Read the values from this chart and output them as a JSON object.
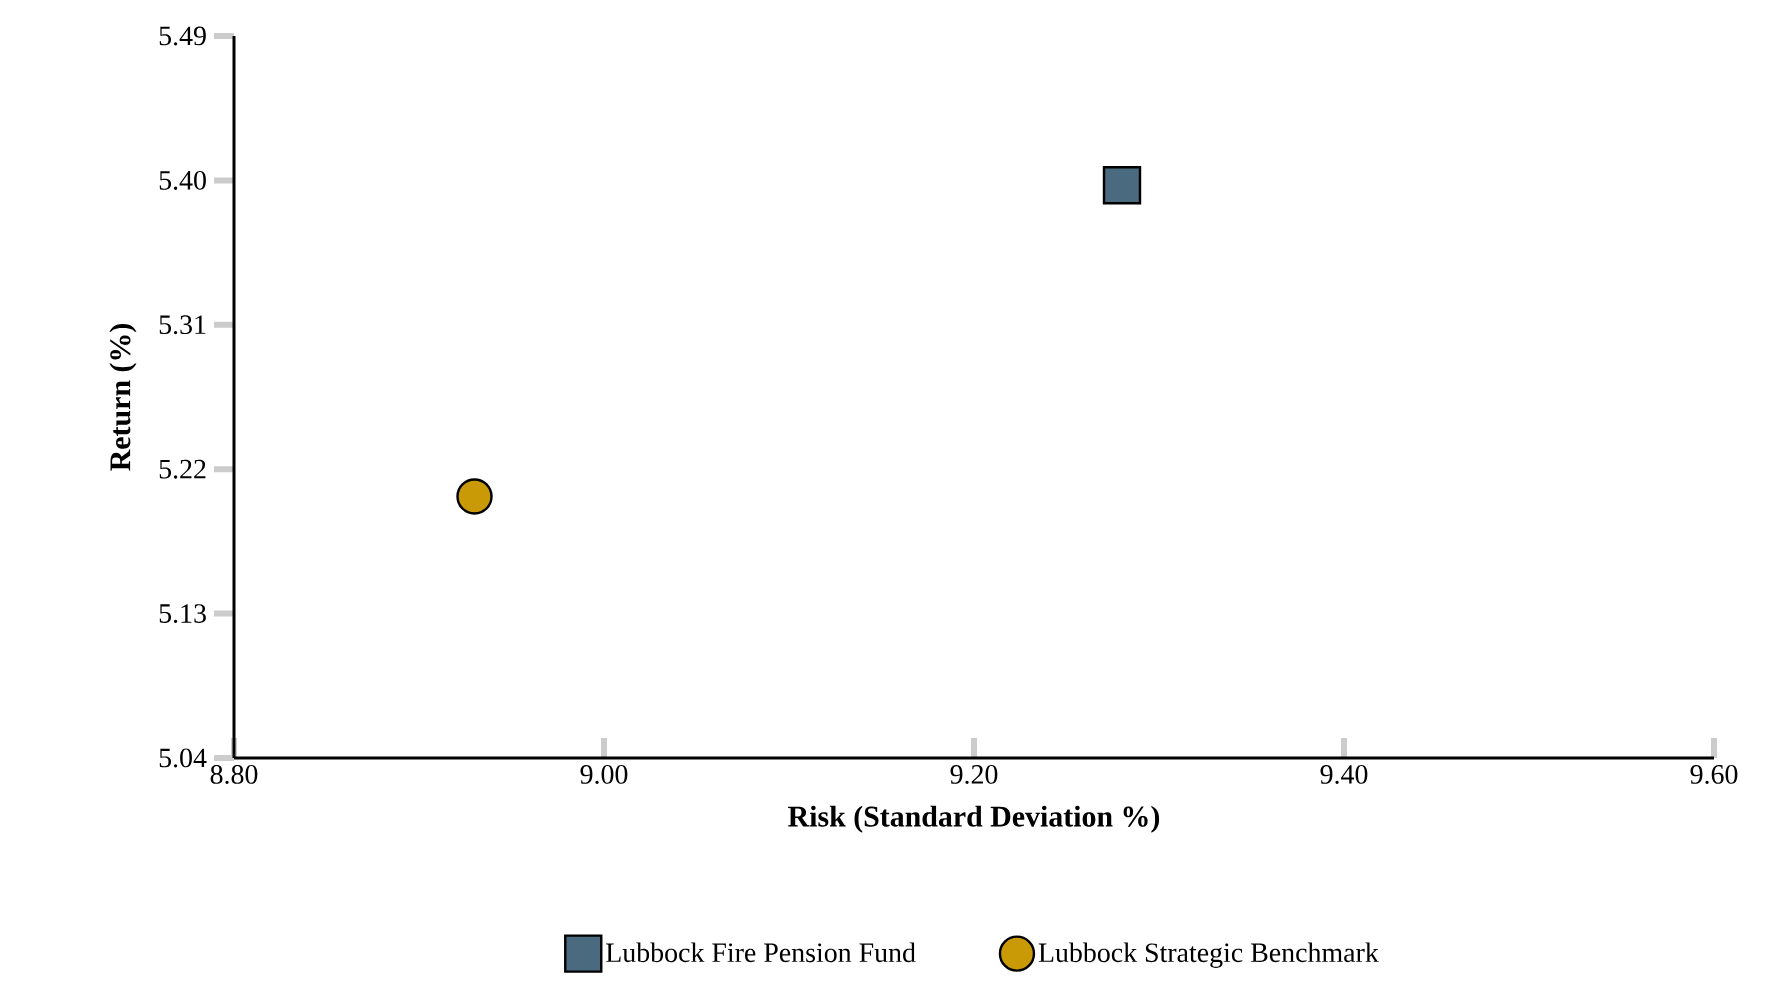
{
  "chart_data": {
    "type": "scatter",
    "xlabel": "Risk (Standard Deviation %)",
    "ylabel": "Return (%)",
    "xlim": [
      8.8,
      9.6
    ],
    "xticks": [
      {
        "value": 8.8,
        "label": "8.80"
      },
      {
        "value": 9.0,
        "label": "9.00"
      },
      {
        "value": 9.2,
        "label": "9.20"
      },
      {
        "value": 9.4,
        "label": "9.40"
      },
      {
        "value": 9.6,
        "label": "9.60"
      }
    ],
    "ylim": [
      5.04,
      5.49
    ],
    "yticks": [
      5.04,
      5.13,
      5.22,
      5.31,
      {
        "value": 5.4,
        "label": "5.40"
      },
      5.49
    ],
    "grid": false,
    "legend": "bottom",
    "series": [
      {
        "name": "Lubbock Fire Pension Fund",
        "color": "#4a6a80",
        "marker": "square",
        "x": [
          9.28
        ],
        "values": [
          5.397
        ]
      },
      {
        "name": "Lubbock Strategic Benchmark",
        "color": "#c99a06",
        "marker": "circle",
        "x": [
          8.93
        ],
        "values": [
          5.203
        ]
      }
    ]
  }
}
